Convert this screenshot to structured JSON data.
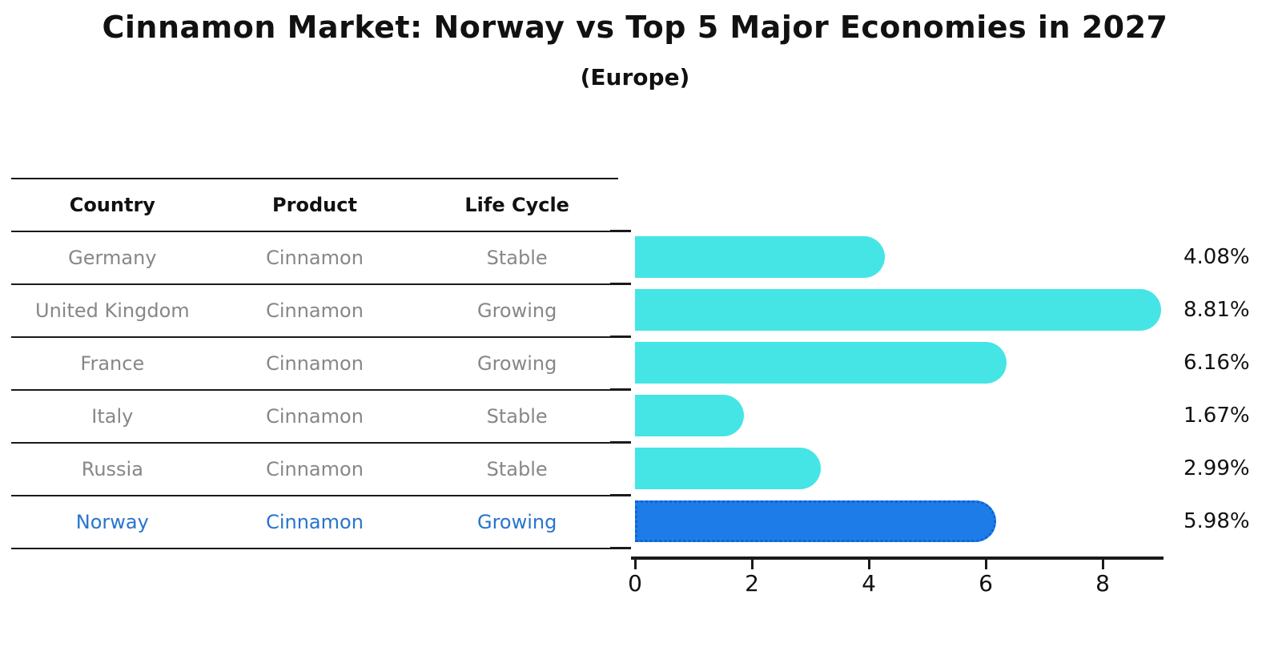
{
  "title": "Cinnamon Market: Norway vs Top 5 Major Economies in 2027",
  "subtitle": "(Europe)",
  "table": {
    "headers": [
      "Country",
      "Product",
      "Life Cycle"
    ],
    "rows": [
      {
        "country": "Germany",
        "product": "Cinnamon",
        "life_cycle": "Stable"
      },
      {
        "country": "United Kingdom",
        "product": "Cinnamon",
        "life_cycle": "Growing"
      },
      {
        "country": "France",
        "product": "Cinnamon",
        "life_cycle": "Growing"
      },
      {
        "country": "Italy",
        "product": "Cinnamon",
        "life_cycle": "Stable"
      },
      {
        "country": "Russia",
        "product": "Cinnamon",
        "life_cycle": "Stable"
      },
      {
        "country": "Norway",
        "product": "Cinnamon",
        "life_cycle": "Growing"
      }
    ],
    "highlight_row_index": 5
  },
  "chart_data": {
    "type": "bar",
    "orientation": "horizontal",
    "title": "Cinnamon Market: Norway vs Top 5 Major Economies in 2027 (Europe)",
    "categories": [
      "Germany",
      "United Kingdom",
      "France",
      "Italy",
      "Russia",
      "Norway"
    ],
    "values": [
      4.08,
      8.81,
      6.16,
      1.67,
      2.99,
      5.98
    ],
    "value_labels": [
      "4.08%",
      "8.81%",
      "6.16%",
      "1.67%",
      "2.99%",
      "5.98%"
    ],
    "highlight_index": 5,
    "xticks": [
      "0",
      "2",
      "4",
      "6",
      "8"
    ],
    "xlim": [
      0,
      9.1
    ],
    "grid": false,
    "legend": false,
    "colors": {
      "bar": "#45E5E5",
      "highlight_bar": "#1D7CE8",
      "highlight_border": "#0D63D6",
      "axis": "#1A1A1A",
      "text": "#111111",
      "muted_text": "#878787",
      "highlight_text": "#2874CC"
    }
  }
}
